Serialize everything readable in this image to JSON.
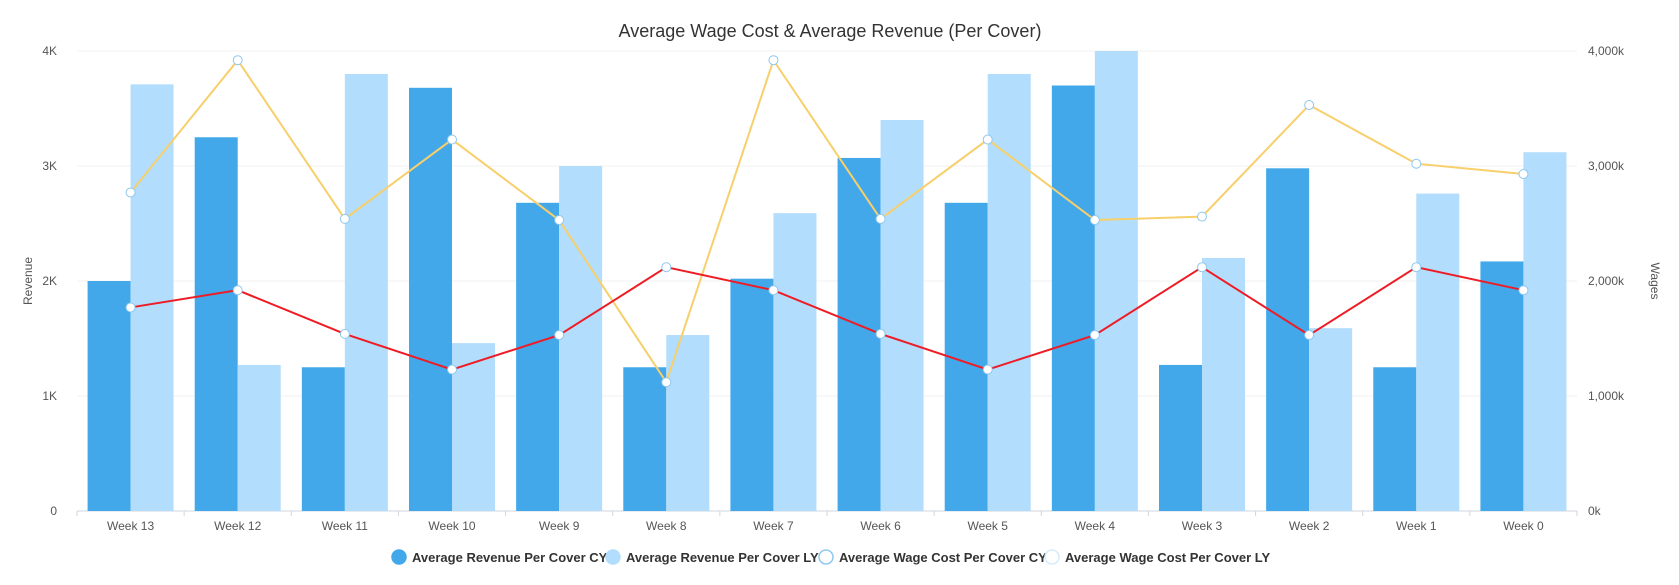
{
  "chart_data": {
    "type": "bar",
    "title": "Average Wage Cost & Average Revenue (Per Cover)",
    "categories": [
      "Week 13",
      "Week 12",
      "Week 11",
      "Week 10",
      "Week 9",
      "Week 8",
      "Week 7",
      "Week 6",
      "Week 5",
      "Week 4",
      "Week 3",
      "Week 2",
      "Week 1",
      "Week 0"
    ],
    "y_left": {
      "label": "Revenue",
      "range": [
        0,
        4000
      ],
      "ticks": [
        0,
        1000,
        2000,
        3000,
        4000
      ],
      "tick_labels": [
        "0",
        "1K",
        "2K",
        "3K",
        "4K"
      ]
    },
    "y_right": {
      "label": "Wages",
      "range": [
        0,
        4000000
      ],
      "ticks": [
        0,
        1000000,
        2000000,
        3000000,
        4000000
      ],
      "tick_labels": [
        "0k",
        "1,000k",
        "2,000k",
        "3,000k",
        "4,000k"
      ]
    },
    "series": [
      {
        "name": "Average Revenue Per Cover CY",
        "kind": "bar",
        "axis": "left",
        "color": "#42a8ea",
        "values": [
          2000,
          3250,
          1250,
          3680,
          2680,
          1250,
          2020,
          3070,
          2680,
          3700,
          1270,
          2980,
          1250,
          2170
        ]
      },
      {
        "name": "Average Revenue Per Cover LY",
        "kind": "bar",
        "axis": "left",
        "color": "#b3ddfc",
        "values": [
          3710,
          1270,
          3800,
          1460,
          3000,
          1530,
          2590,
          3400,
          3800,
          4000,
          2200,
          1590,
          2760,
          3120
        ]
      },
      {
        "name": "Average Wage Cost Per Cover CY",
        "kind": "line",
        "axis": "right",
        "color": "#ee1c25",
        "values": [
          1770000,
          1920000,
          1540000,
          1230000,
          1530000,
          2120000,
          1920000,
          1540000,
          1230000,
          1530000,
          2120000,
          1530000,
          2120000,
          1920000
        ]
      },
      {
        "name": "Average Wage Cost Per Cover LY",
        "kind": "line",
        "axis": "right",
        "color": "#f7cf6b",
        "values": [
          2770000,
          3920000,
          2540000,
          3230000,
          2530000,
          1120000,
          3920000,
          2540000,
          3230000,
          2530000,
          2560000,
          3530000,
          3020000,
          2930000
        ]
      }
    ],
    "grid": true,
    "legend_position": "bottom"
  }
}
